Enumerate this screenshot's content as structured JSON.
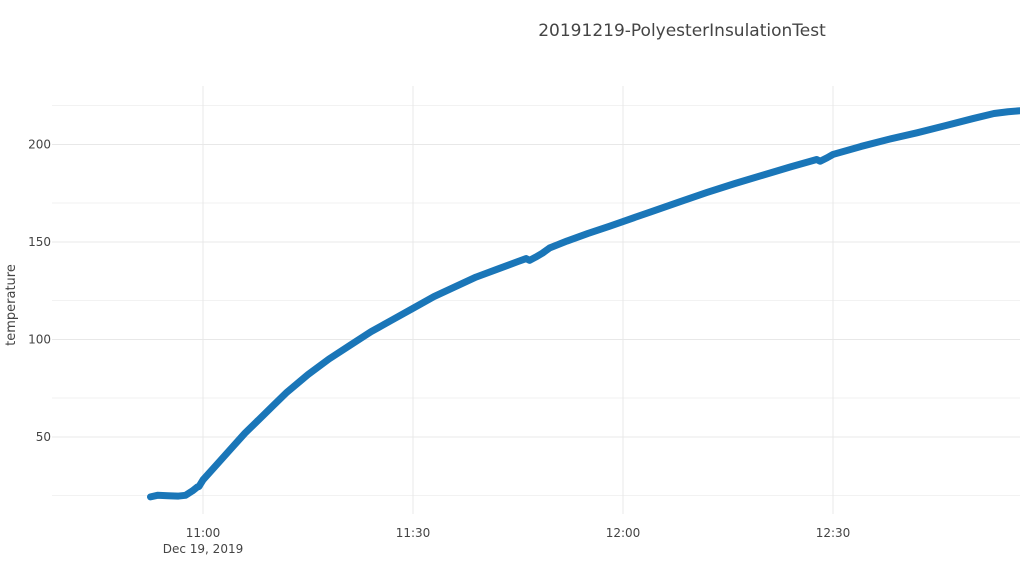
{
  "chart_data": {
    "type": "line",
    "title": "20191219-PolyesterInsulationTest",
    "xlabel": "",
    "ylabel": "temperature",
    "x_type": "time",
    "xlim": [
      "2019-12-19 10:47",
      "2019-12-19 12:57"
    ],
    "ylim": [
      9,
      230
    ],
    "x_ticks": [
      {
        "value": "2019-12-19 11:00",
        "label": "11:00",
        "sublabel": "Dec 19, 2019"
      },
      {
        "value": "2019-12-19 11:30",
        "label": "11:30",
        "sublabel": ""
      },
      {
        "value": "2019-12-19 12:00",
        "label": "12:00",
        "sublabel": ""
      },
      {
        "value": "2019-12-19 12:30",
        "label": "12:30",
        "sublabel": ""
      }
    ],
    "y_ticks": [
      50,
      100,
      150,
      200
    ],
    "y_minor_ticks": [
      20,
      70,
      120,
      170,
      220
    ],
    "grid": true,
    "legend": "none",
    "series": [
      {
        "color": "#1a76b8",
        "points": [
          {
            "x": "2019-12-19 10:52:30",
            "y": 19.3
          },
          {
            "x": "2019-12-19 10:53:30",
            "y": 20.1
          },
          {
            "x": "2019-12-19 10:55:00",
            "y": 19.9
          },
          {
            "x": "2019-12-19 10:56:30",
            "y": 19.7
          },
          {
            "x": "2019-12-19 10:57:30",
            "y": 20.1
          },
          {
            "x": "2019-12-19 10:58:30",
            "y": 22.4
          },
          {
            "x": "2019-12-19 10:59:10",
            "y": 24.3
          },
          {
            "x": "2019-12-19 10:59:25",
            "y": 24.6
          },
          {
            "x": "2019-12-19 11:00",
            "y": 28
          },
          {
            "x": "2019-12-19 11:02",
            "y": 36
          },
          {
            "x": "2019-12-19 11:04",
            "y": 44
          },
          {
            "x": "2019-12-19 11:06",
            "y": 52
          },
          {
            "x": "2019-12-19 11:08",
            "y": 59
          },
          {
            "x": "2019-12-19 11:10",
            "y": 66
          },
          {
            "x": "2019-12-19 11:12",
            "y": 73
          },
          {
            "x": "2019-12-19 11:15",
            "y": 82
          },
          {
            "x": "2019-12-19 11:18",
            "y": 90
          },
          {
            "x": "2019-12-19 11:21",
            "y": 97
          },
          {
            "x": "2019-12-19 11:24",
            "y": 104
          },
          {
            "x": "2019-12-19 11:27",
            "y": 110
          },
          {
            "x": "2019-12-19 11:30",
            "y": 116
          },
          {
            "x": "2019-12-19 11:33",
            "y": 122
          },
          {
            "x": "2019-12-19 11:36",
            "y": 127
          },
          {
            "x": "2019-12-19 11:39",
            "y": 132
          },
          {
            "x": "2019-12-19 11:42",
            "y": 136
          },
          {
            "x": "2019-12-19 11:45",
            "y": 140
          },
          {
            "x": "2019-12-19 11:46:10",
            "y": 141.5
          },
          {
            "x": "2019-12-19 11:46:40",
            "y": 140.6
          },
          {
            "x": "2019-12-19 11:47:30",
            "y": 142.2
          },
          {
            "x": "2019-12-19 11:48:30",
            "y": 144.3
          },
          {
            "x": "2019-12-19 11:49:30",
            "y": 146.9
          },
          {
            "x": "2019-12-19 11:52",
            "y": 150.5
          },
          {
            "x": "2019-12-19 11:55",
            "y": 154.4
          },
          {
            "x": "2019-12-19 11:58",
            "y": 158
          },
          {
            "x": "2019-12-19 12:00",
            "y": 160.5
          },
          {
            "x": "2019-12-19 12:04",
            "y": 165.5
          },
          {
            "x": "2019-12-19 12:08",
            "y": 170.5
          },
          {
            "x": "2019-12-19 12:12",
            "y": 175.4
          },
          {
            "x": "2019-12-19 12:16",
            "y": 180
          },
          {
            "x": "2019-12-19 12:20",
            "y": 184.3
          },
          {
            "x": "2019-12-19 12:24",
            "y": 188.6
          },
          {
            "x": "2019-12-19 12:27:40",
            "y": 192.3
          },
          {
            "x": "2019-12-19 12:28:10",
            "y": 191.4
          },
          {
            "x": "2019-12-19 12:29:10",
            "y": 193.2
          },
          {
            "x": "2019-12-19 12:30",
            "y": 194.9
          },
          {
            "x": "2019-12-19 12:34",
            "y": 199
          },
          {
            "x": "2019-12-19 12:38",
            "y": 202.7
          },
          {
            "x": "2019-12-19 12:42",
            "y": 206
          },
          {
            "x": "2019-12-19 12:46",
            "y": 209.6
          },
          {
            "x": "2019-12-19 12:50",
            "y": 213.3
          },
          {
            "x": "2019-12-19 12:53",
            "y": 215.9
          },
          {
            "x": "2019-12-19 12:55",
            "y": 216.8
          },
          {
            "x": "2019-12-19 12:57",
            "y": 217.4
          }
        ]
      }
    ]
  }
}
